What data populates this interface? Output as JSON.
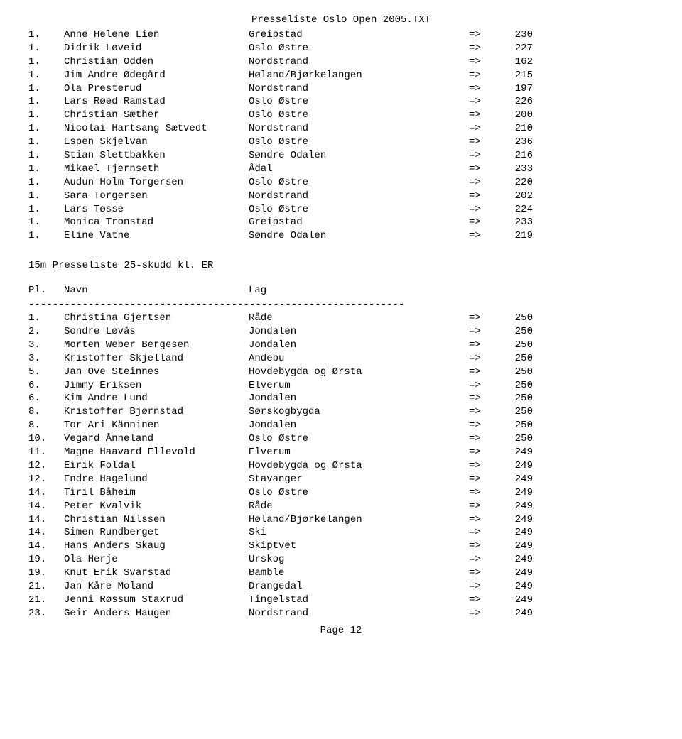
{
  "doc_title": "Presseliste Oslo Open 2005.TXT",
  "arrow": "=>",
  "table1": {
    "rows": [
      {
        "pl": "1.",
        "name": "Anne Helene Lien",
        "lag": "Greipstad",
        "score": "230"
      },
      {
        "pl": "1.",
        "name": "Didrik Løveid",
        "lag": "Oslo Østre",
        "score": "227"
      },
      {
        "pl": "1.",
        "name": "Christian Odden",
        "lag": "Nordstrand",
        "score": "162"
      },
      {
        "pl": "1.",
        "name": "Jim Andre Ødegård",
        "lag": "Høland/Bjørkelangen",
        "score": "215"
      },
      {
        "pl": "1.",
        "name": "Ola Presterud",
        "lag": "Nordstrand",
        "score": "197"
      },
      {
        "pl": "1.",
        "name": "Lars Røed Ramstad",
        "lag": "Oslo Østre",
        "score": "226"
      },
      {
        "pl": "1.",
        "name": "Christian Sæther",
        "lag": "Oslo Østre",
        "score": "200"
      },
      {
        "pl": "1.",
        "name": "Nicolai Hartsang Sætvedt",
        "lag": "Nordstrand",
        "score": "210"
      },
      {
        "pl": "1.",
        "name": "Espen Skjelvan",
        "lag": "Oslo Østre",
        "score": "236"
      },
      {
        "pl": "1.",
        "name": "Stian Slettbakken",
        "lag": "Søndre Odalen",
        "score": "216"
      },
      {
        "pl": "1.",
        "name": "Mikael Tjernseth",
        "lag": "Ådal",
        "score": "233"
      },
      {
        "pl": "1.",
        "name": "Audun Holm Torgersen",
        "lag": "Oslo Østre",
        "score": "220"
      },
      {
        "pl": "1.",
        "name": "Sara Torgersen",
        "lag": "Nordstrand",
        "score": "202"
      },
      {
        "pl": "1.",
        "name": "Lars Tøsse",
        "lag": "Oslo Østre",
        "score": "224"
      },
      {
        "pl": "1.",
        "name": "Monica Tronstad",
        "lag": "Greipstad",
        "score": "233"
      },
      {
        "pl": "1.",
        "name": "Eline Vatne",
        "lag": "Søndre Odalen",
        "score": "219"
      }
    ]
  },
  "section2_title": "15m  Presseliste 25-skudd kl. ER",
  "header": {
    "pl": "Pl.",
    "name": "Navn",
    "lag": "Lag"
  },
  "divider": "---------------------------------------------------------------",
  "table2": {
    "rows": [
      {
        "pl": "1.",
        "name": "Christina Gjertsen",
        "lag": "Råde",
        "score": "250"
      },
      {
        "pl": "2.",
        "name": "Sondre Løvås",
        "lag": "Jondalen",
        "score": "250"
      },
      {
        "pl": "3.",
        "name": "Morten Weber Bergesen",
        "lag": "Jondalen",
        "score": "250"
      },
      {
        "pl": "3.",
        "name": "Kristoffer Skjelland",
        "lag": "Andebu",
        "score": "250"
      },
      {
        "pl": "5.",
        "name": "Jan Ove Steinnes",
        "lag": "Hovdebygda og Ørsta",
        "score": "250"
      },
      {
        "pl": "6.",
        "name": "Jimmy Eriksen",
        "lag": "Elverum",
        "score": "250"
      },
      {
        "pl": "6.",
        "name": "Kim Andre Lund",
        "lag": "Jondalen",
        "score": "250"
      },
      {
        "pl": "8.",
        "name": "Kristoffer Bjørnstad",
        "lag": "Sørskogbygda",
        "score": "250"
      },
      {
        "pl": "8.",
        "name": "Tor Ari Känninen",
        "lag": "Jondalen",
        "score": "250"
      },
      {
        "pl": "10.",
        "name": "Vegard Ånneland",
        "lag": "Oslo Østre",
        "score": "250"
      },
      {
        "pl": "11.",
        "name": "Magne Haavard Ellevold",
        "lag": "Elverum",
        "score": "249"
      },
      {
        "pl": "12.",
        "name": "Eirik Foldal",
        "lag": "Hovdebygda og Ørsta",
        "score": "249"
      },
      {
        "pl": "12.",
        "name": "Endre Hagelund",
        "lag": "Stavanger",
        "score": "249"
      },
      {
        "pl": "14.",
        "name": "Tiril Båheim",
        "lag": "Oslo Østre",
        "score": "249"
      },
      {
        "pl": "14.",
        "name": "Peter Kvalvik",
        "lag": "Råde",
        "score": "249"
      },
      {
        "pl": "14.",
        "name": "Christian Nilssen",
        "lag": "Høland/Bjørkelangen",
        "score": "249"
      },
      {
        "pl": "14.",
        "name": "Simen Rundberget",
        "lag": "Ski",
        "score": "249"
      },
      {
        "pl": "14.",
        "name": "Hans Anders Skaug",
        "lag": "Skiptvet",
        "score": "249"
      },
      {
        "pl": "19.",
        "name": "Ola Herje",
        "lag": "Urskog",
        "score": "249"
      },
      {
        "pl": "19.",
        "name": "Knut Erik Svarstad",
        "lag": "Bamble",
        "score": "249"
      },
      {
        "pl": "21.",
        "name": "Jan Kåre Moland",
        "lag": "Drangedal",
        "score": "249"
      },
      {
        "pl": "21.",
        "name": "Jenni Røssum Staxrud",
        "lag": "Tingelstad",
        "score": "249"
      },
      {
        "pl": "23.",
        "name": "Geir Anders Haugen",
        "lag": "Nordstrand",
        "score": "249"
      }
    ]
  },
  "page_label": "Page 12"
}
